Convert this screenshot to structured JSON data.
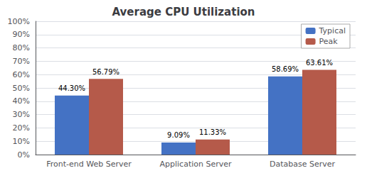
{
  "chart_data": {
    "type": "bar",
    "title": "Average CPU Utilization",
    "categories": [
      "Front-end Web Server",
      "Application Server",
      "Database Server"
    ],
    "series": [
      {
        "name": "Typical",
        "color": "#4472C4",
        "values": [
          44.3,
          9.09,
          58.69
        ],
        "value_labels": [
          "44.30%",
          "9.09%",
          "58.69%"
        ]
      },
      {
        "name": "Peak",
        "color": "#B55A4A",
        "values": [
          56.79,
          11.33,
          63.61
        ],
        "value_labels": [
          "56.79%",
          "11.33%",
          "63.61%"
        ]
      }
    ],
    "ylim": [
      0,
      100
    ],
    "yticks": [
      {
        "value": 0,
        "label": "0%"
      },
      {
        "value": 10,
        "label": "10%"
      },
      {
        "value": 20,
        "label": "20%"
      },
      {
        "value": 30,
        "label": "30%"
      },
      {
        "value": 40,
        "label": "40%"
      },
      {
        "value": 50,
        "label": "50%"
      },
      {
        "value": 60,
        "label": "60%"
      },
      {
        "value": 70,
        "label": "70%"
      },
      {
        "value": 80,
        "label": "80%"
      },
      {
        "value": 90,
        "label": "90%"
      },
      {
        "value": 100,
        "label": "100%"
      }
    ],
    "grid": true,
    "legend": "upper right",
    "data_labels": true
  }
}
